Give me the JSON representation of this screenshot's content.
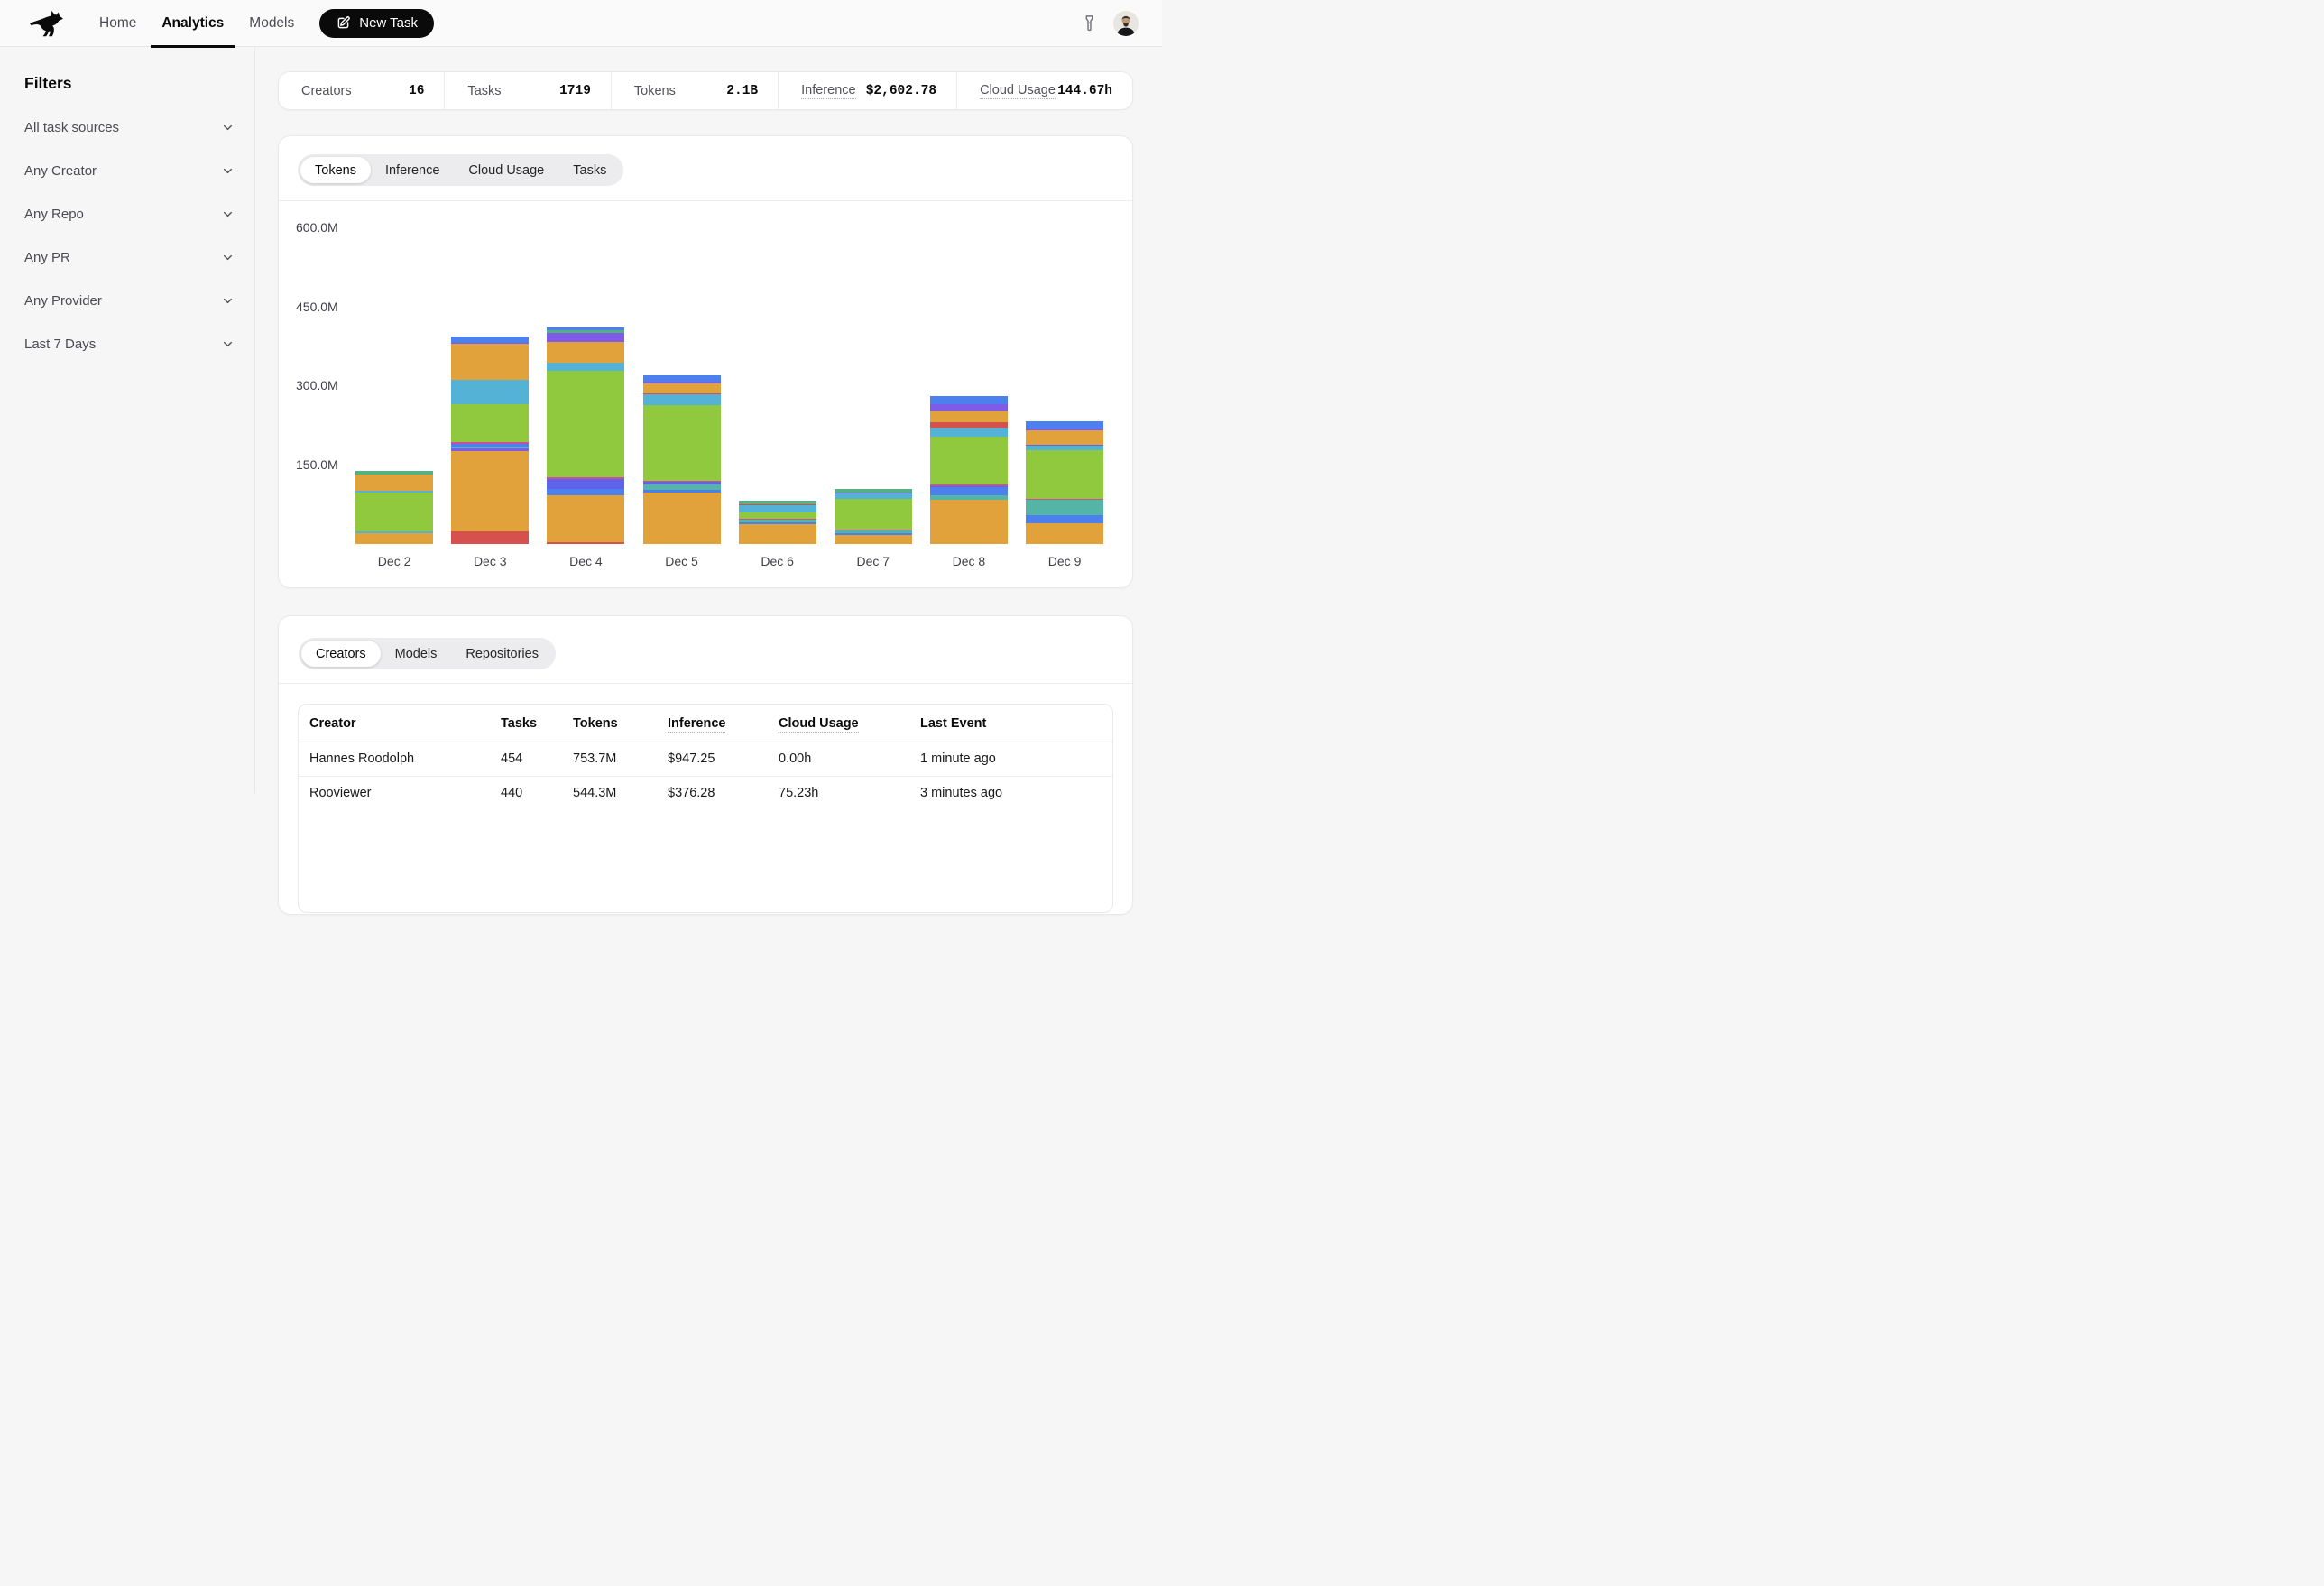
{
  "nav": {
    "items": [
      "Home",
      "Analytics",
      "Models"
    ],
    "active": "Analytics",
    "new_task_label": "New Task"
  },
  "icons": {
    "logo": "kangaroo",
    "new_task": "edit-pencil-square",
    "header_tool": "flashlight",
    "filter_rows": "chevron-down",
    "avatar": "user-photo"
  },
  "sidebar": {
    "title": "Filters",
    "filters": [
      "All task sources",
      "Any Creator",
      "Any Repo",
      "Any PR",
      "Any Provider",
      "Last 7 Days"
    ]
  },
  "stats": {
    "items": [
      {
        "label": "Creators",
        "value": "16",
        "underline": false
      },
      {
        "label": "Tasks",
        "value": "1719",
        "underline": false
      },
      {
        "label": "Tokens",
        "value": "2.1B",
        "underline": false
      },
      {
        "label": "Inference",
        "value": "$2,602.78",
        "underline": true
      },
      {
        "label": "Cloud Usage",
        "value": "144.67h",
        "underline": true
      }
    ]
  },
  "chart_section": {
    "tabs": [
      "Tokens",
      "Inference",
      "Cloud Usage",
      "Tasks"
    ],
    "active_tab": "Tokens"
  },
  "chart_data": {
    "type": "bar",
    "stacked": true,
    "unit": "tokens (millions)",
    "categories": [
      "Dec 2",
      "Dec 3",
      "Dec 4",
      "Dec 5",
      "Dec 6",
      "Dec 7",
      "Dec 8",
      "Dec 9"
    ],
    "y_ticks_m": [
      150,
      300,
      450,
      600
    ],
    "y_tick_labels": [
      "150.0M",
      "300.0M",
      "450.0M",
      "600.0M"
    ],
    "ylim_m": [
      0,
      650
    ],
    "grid": false,
    "legend": "none",
    "totals_m": [
      138,
      393,
      410,
      320,
      83,
      105,
      281,
      232
    ],
    "palette": {
      "orange": "#e2a23b",
      "red": "#d5514d",
      "royal": "#4c80ee",
      "indigo": "#5e63e8",
      "sky": "#55b2d7",
      "green": "#90c83e",
      "pink": "#cc4f9f",
      "teal": "#54b5a6",
      "emerald": "#54b181",
      "purple": "#7f5be8"
    },
    "bars": [
      {
        "category": "Dec 2",
        "segments": [
          {
            "color": "orange",
            "value_m": 20
          },
          {
            "color": "sky",
            "value_m": 3.5
          },
          {
            "color": "green",
            "value_m": 74
          },
          {
            "color": "sky",
            "value_m": 3.5
          },
          {
            "color": "orange",
            "value_m": 31
          },
          {
            "color": "emerald",
            "value_m": 6
          }
        ]
      },
      {
        "category": "Dec 3",
        "segments": [
          {
            "color": "red",
            "value_m": 23.5
          },
          {
            "color": "orange",
            "value_m": 152
          },
          {
            "color": "purple",
            "value_m": 6.4
          },
          {
            "color": "sky",
            "value_m": 2.5
          },
          {
            "color": "royal",
            "value_m": 5.9
          },
          {
            "color": "pink",
            "value_m": 3.4
          },
          {
            "color": "green",
            "value_m": 72
          },
          {
            "color": "sky",
            "value_m": 45
          },
          {
            "color": "orange",
            "value_m": 69
          },
          {
            "color": "purple",
            "value_m": 2.2
          },
          {
            "color": "royal",
            "value_m": 11.1
          }
        ]
      },
      {
        "category": "Dec 4",
        "segments": [
          {
            "color": "red",
            "value_m": 2.8
          },
          {
            "color": "orange",
            "value_m": 90
          },
          {
            "color": "royal",
            "value_m": 12
          },
          {
            "color": "indigo",
            "value_m": 17.6
          },
          {
            "color": "pink",
            "value_m": 3.4
          },
          {
            "color": "green",
            "value_m": 203
          },
          {
            "color": "sky",
            "value_m": 14
          },
          {
            "color": "orange",
            "value_m": 40
          },
          {
            "color": "purple",
            "value_m": 17
          },
          {
            "color": "emerald",
            "value_m": 5
          },
          {
            "color": "royal",
            "value_m": 5.6
          }
        ]
      },
      {
        "category": "Dec 5",
        "segments": [
          {
            "color": "orange",
            "value_m": 97
          },
          {
            "color": "royal",
            "value_m": 6.2
          },
          {
            "color": "teal",
            "value_m": 9
          },
          {
            "color": "indigo",
            "value_m": 5
          },
          {
            "color": "pink",
            "value_m": 2.8
          },
          {
            "color": "green",
            "value_m": 144
          },
          {
            "color": "sky",
            "value_m": 19.3
          },
          {
            "color": "red",
            "value_m": 2.3
          },
          {
            "color": "orange",
            "value_m": 18.5
          },
          {
            "color": "purple",
            "value_m": 3.4
          },
          {
            "color": "royal",
            "value_m": 13
          }
        ]
      },
      {
        "category": "Dec 6",
        "segments": [
          {
            "color": "orange",
            "value_m": 37
          },
          {
            "color": "royal",
            "value_m": 3.4
          },
          {
            "color": "teal",
            "value_m": 6.2
          },
          {
            "color": "pink",
            "value_m": 1.7
          },
          {
            "color": "green",
            "value_m": 12
          },
          {
            "color": "sky",
            "value_m": 13
          },
          {
            "color": "red",
            "value_m": 2
          },
          {
            "color": "emerald",
            "value_m": 7.6
          }
        ]
      },
      {
        "category": "Dec 7",
        "segments": [
          {
            "color": "orange",
            "value_m": 17
          },
          {
            "color": "royal",
            "value_m": 3.6
          },
          {
            "color": "teal",
            "value_m": 5.3
          },
          {
            "color": "pink",
            "value_m": 2.3
          },
          {
            "color": "green",
            "value_m": 58
          },
          {
            "color": "sky",
            "value_m": 9
          },
          {
            "color": "purple",
            "value_m": 1.7
          },
          {
            "color": "emerald",
            "value_m": 7.6
          }
        ]
      },
      {
        "category": "Dec 8",
        "segments": [
          {
            "color": "orange",
            "value_m": 84
          },
          {
            "color": "teal",
            "value_m": 7.8
          },
          {
            "color": "royal",
            "value_m": 16.2
          },
          {
            "color": "indigo",
            "value_m": 2
          },
          {
            "color": "pink",
            "value_m": 2.8
          },
          {
            "color": "green",
            "value_m": 91
          },
          {
            "color": "sky",
            "value_m": 17.4
          },
          {
            "color": "red",
            "value_m": 10
          },
          {
            "color": "orange",
            "value_m": 20
          },
          {
            "color": "purple",
            "value_m": 14
          },
          {
            "color": "royal",
            "value_m": 15.4
          }
        ]
      },
      {
        "category": "Dec 9",
        "segments": [
          {
            "color": "orange",
            "value_m": 40
          },
          {
            "color": "royal",
            "value_m": 14.8
          },
          {
            "color": "teal",
            "value_m": 29
          },
          {
            "color": "pink",
            "value_m": 2.3
          },
          {
            "color": "green",
            "value_m": 92
          },
          {
            "color": "sky",
            "value_m": 7.6
          },
          {
            "color": "indigo",
            "value_m": 1.5
          },
          {
            "color": "orange",
            "value_m": 29
          },
          {
            "color": "purple",
            "value_m": 2
          },
          {
            "color": "royal",
            "value_m": 14
          }
        ]
      }
    ]
  },
  "table_section": {
    "tabs": [
      "Creators",
      "Models",
      "Repositories"
    ],
    "active_tab": "Creators"
  },
  "table": {
    "columns": [
      {
        "label": "Creator",
        "underline": false
      },
      {
        "label": "Tasks",
        "underline": false
      },
      {
        "label": "Tokens",
        "underline": false
      },
      {
        "label": "Inference",
        "underline": true
      },
      {
        "label": "Cloud Usage",
        "underline": true
      },
      {
        "label": "Last Event",
        "underline": false
      }
    ],
    "rows": [
      [
        "Hannes Roodolph",
        "454",
        "753.7M",
        "$947.25",
        "0.00h",
        "1 minute ago"
      ],
      [
        "Rooviewer",
        "440",
        "544.3M",
        "$376.28",
        "75.23h",
        "3 minutes ago"
      ]
    ]
  },
  "colors": {
    "accent": "#0a0a0a",
    "page_bg": "#f6f6f6",
    "card_bg": "#ffffff",
    "border": "#e9e9ea",
    "muted_text": "#52525b",
    "dotted_underline": "#a8a8b0"
  }
}
